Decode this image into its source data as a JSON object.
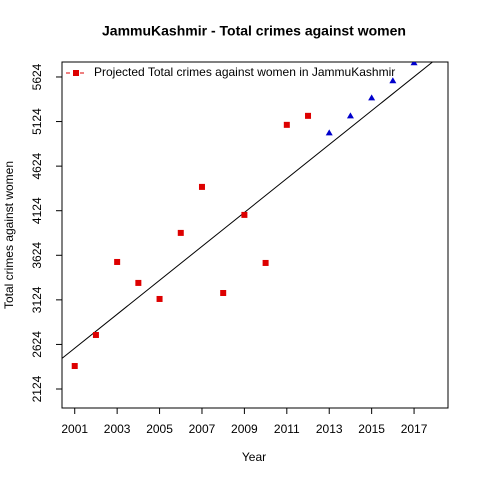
{
  "chart_data": {
    "type": "scatter",
    "title": "JammuKashmir  -  Total crimes against women",
    "x_label": "Year",
    "y_label": "Total crimes against women",
    "series": [
      {
        "name": "Projected  Total crimes against women  in  JammuKashmir",
        "color": "#dd0000",
        "marker": "square",
        "x": [
          2001,
          2002,
          2003,
          2004,
          2005,
          2006,
          2007,
          2008,
          2009,
          2010,
          2011,
          2012
        ],
        "values": [
          2382,
          2730,
          3549,
          3314,
          3134,
          3875,
          4391,
          3201,
          4077,
          3538,
          5087,
          5188
        ]
      },
      {
        "color": "#0000cc",
        "marker": "triangle",
        "x": [
          2013,
          2014,
          2015,
          2016,
          2017
        ],
        "values": [
          4997,
          5188,
          5390,
          5581,
          5783
        ]
      }
    ],
    "trend": {
      "color": "#000000",
      "x": [
        2000.4,
        2018
      ],
      "values": [
        2468,
        5817
      ]
    },
    "xlim": [
      2000.4,
      2018.6
    ],
    "xticks": [
      2001,
      2003,
      2005,
      2007,
      2009,
      2011,
      2013,
      2015,
      2017
    ],
    "ylim": [
      1911,
      5792
    ],
    "yticks": [
      2124,
      2624,
      3124,
      3624,
      4124,
      4624,
      5124,
      5624
    ],
    "legend": "top-left"
  }
}
